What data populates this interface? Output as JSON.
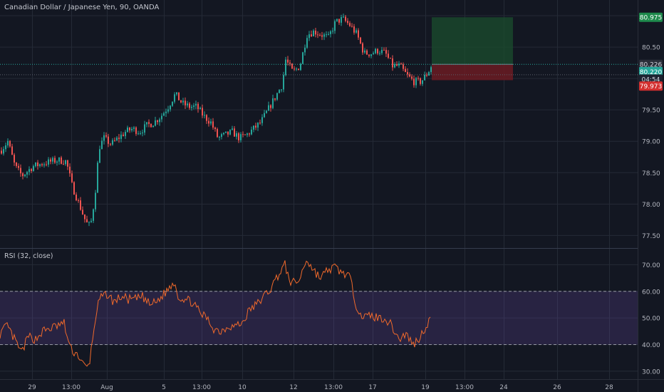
{
  "window": {
    "title": "Canadian Dollar / Japanese Yen, 90, OANDA",
    "rsi_title": "RSI (32, close)"
  },
  "colors": {
    "background": "#131722",
    "grid": "#242a36",
    "candle_up": "#26a69a",
    "candle_down": "#ef5350",
    "rsi_line": "#f0692b",
    "rsi_band": "#7e57c2",
    "target_zone": "#1b4d2e",
    "stop_zone": "#6b1b22",
    "axis_text": "#b2b5be"
  },
  "chart_data": [
    {
      "type": "candlestick",
      "name": "price",
      "ylim": [
        77.3,
        81.25
      ],
      "y_ticks": [
        77.5,
        78.0,
        78.5,
        79.0,
        79.5,
        80.5
      ],
      "x_labels": [
        "29",
        "13:00",
        "Aug",
        "5",
        "13:00",
        "10",
        "12",
        "13:00",
        "17",
        "19",
        "13:00",
        "24",
        "26",
        "28"
      ],
      "path": [
        [
          0,
          78.85
        ],
        [
          10,
          79.0
        ],
        [
          20,
          78.6
        ],
        [
          30,
          78.45
        ],
        [
          45,
          78.6
        ],
        [
          60,
          78.65
        ],
        [
          80,
          78.7
        ],
        [
          92,
          78.68
        ],
        [
          100,
          78.3
        ],
        [
          110,
          78.0
        ],
        [
          120,
          77.7
        ],
        [
          126,
          77.65
        ],
        [
          132,
          78.1
        ],
        [
          138,
          78.9
        ],
        [
          145,
          79.05
        ],
        [
          155,
          78.95
        ],
        [
          165,
          79.05
        ],
        [
          175,
          79.15
        ],
        [
          185,
          79.2
        ],
        [
          195,
          79.15
        ],
        [
          205,
          79.25
        ],
        [
          215,
          79.3
        ],
        [
          225,
          79.4
        ],
        [
          235,
          79.55
        ],
        [
          245,
          79.75
        ],
        [
          255,
          79.6
        ],
        [
          265,
          79.55
        ],
        [
          275,
          79.55
        ],
        [
          285,
          79.4
        ],
        [
          295,
          79.3
        ],
        [
          305,
          79.05
        ],
        [
          315,
          79.1
        ],
        [
          325,
          79.15
        ],
        [
          335,
          79.05
        ],
        [
          345,
          79.1
        ],
        [
          355,
          79.2
        ],
        [
          365,
          79.3
        ],
        [
          375,
          79.5
        ],
        [
          385,
          79.7
        ],
        [
          395,
          79.9
        ],
        [
          400,
          80.3
        ],
        [
          410,
          80.1
        ],
        [
          420,
          80.2
        ],
        [
          430,
          80.7
        ],
        [
          440,
          80.75
        ],
        [
          450,
          80.7
        ],
        [
          460,
          80.65
        ],
        [
          470,
          80.9
        ],
        [
          480,
          80.95
        ],
        [
          490,
          80.85
        ],
        [
          500,
          80.7
        ],
        [
          510,
          80.4
        ],
        [
          520,
          80.4
        ],
        [
          530,
          80.45
        ],
        [
          540,
          80.4
        ],
        [
          550,
          80.2
        ],
        [
          560,
          80.2
        ],
        [
          570,
          80.05
        ],
        [
          580,
          79.95
        ],
        [
          590,
          79.95
        ],
        [
          600,
          80.1
        ],
        [
          605,
          80.22
        ]
      ],
      "horizontal_lines": [
        80.226,
        80.06
      ],
      "price_badges": [
        {
          "label": "80.975",
          "value": 80.975,
          "role": "target"
        },
        {
          "label": "80.226",
          "value": 80.226,
          "role": "entry"
        },
        {
          "label": "80.220",
          "value": 80.11,
          "role": "last"
        },
        {
          "label": "04:54",
          "value": 79.99,
          "role": "countdown"
        },
        {
          "label": "79.973",
          "value": 79.88,
          "role": "stop"
        }
      ],
      "position": {
        "direction": "long",
        "entry": 80.226,
        "target": 80.975,
        "stop": 79.973
      }
    },
    {
      "type": "line",
      "name": "RSI",
      "ylim": [
        27,
        76
      ],
      "y_ticks": [
        30.0,
        40.0,
        50.0,
        60.0,
        70.0
      ],
      "band": [
        40,
        60
      ],
      "path": [
        [
          0,
          44
        ],
        [
          10,
          47
        ],
        [
          20,
          42
        ],
        [
          30,
          37
        ],
        [
          40,
          43
        ],
        [
          50,
          42
        ],
        [
          60,
          45
        ],
        [
          70,
          46
        ],
        [
          80,
          47
        ],
        [
          90,
          48
        ],
        [
          95,
          42
        ],
        [
          100,
          38
        ],
        [
          105,
          37
        ],
        [
          110,
          36
        ],
        [
          115,
          33
        ],
        [
          120,
          31.5
        ],
        [
          125,
          32
        ],
        [
          130,
          42
        ],
        [
          135,
          52
        ],
        [
          140,
          57
        ],
        [
          150,
          59
        ],
        [
          160,
          56
        ],
        [
          170,
          58
        ],
        [
          180,
          57
        ],
        [
          190,
          57
        ],
        [
          200,
          58
        ],
        [
          210,
          55
        ],
        [
          220,
          56
        ],
        [
          230,
          59
        ],
        [
          240,
          62
        ],
        [
          245,
          64
        ],
        [
          250,
          58
        ],
        [
          260,
          57
        ],
        [
          270,
          56
        ],
        [
          280,
          52
        ],
        [
          290,
          50
        ],
        [
          300,
          46
        ],
        [
          310,
          45
        ],
        [
          320,
          47
        ],
        [
          330,
          47
        ],
        [
          340,
          48
        ],
        [
          350,
          53
        ],
        [
          360,
          55
        ],
        [
          370,
          58
        ],
        [
          380,
          61
        ],
        [
          390,
          66
        ],
        [
          400,
          70
        ],
        [
          405,
          65
        ],
        [
          410,
          63
        ],
        [
          420,
          64
        ],
        [
          430,
          72
        ],
        [
          440,
          68
        ],
        [
          450,
          65
        ],
        [
          460,
          68
        ],
        [
          470,
          69
        ],
        [
          480,
          67
        ],
        [
          490,
          66
        ],
        [
          500,
          55
        ],
        [
          510,
          50
        ],
        [
          520,
          51
        ],
        [
          530,
          50
        ],
        [
          540,
          50
        ],
        [
          550,
          47
        ],
        [
          560,
          42
        ],
        [
          570,
          44
        ],
        [
          580,
          40
        ],
        [
          590,
          43
        ],
        [
          600,
          48
        ],
        [
          605,
          50
        ]
      ]
    }
  ]
}
